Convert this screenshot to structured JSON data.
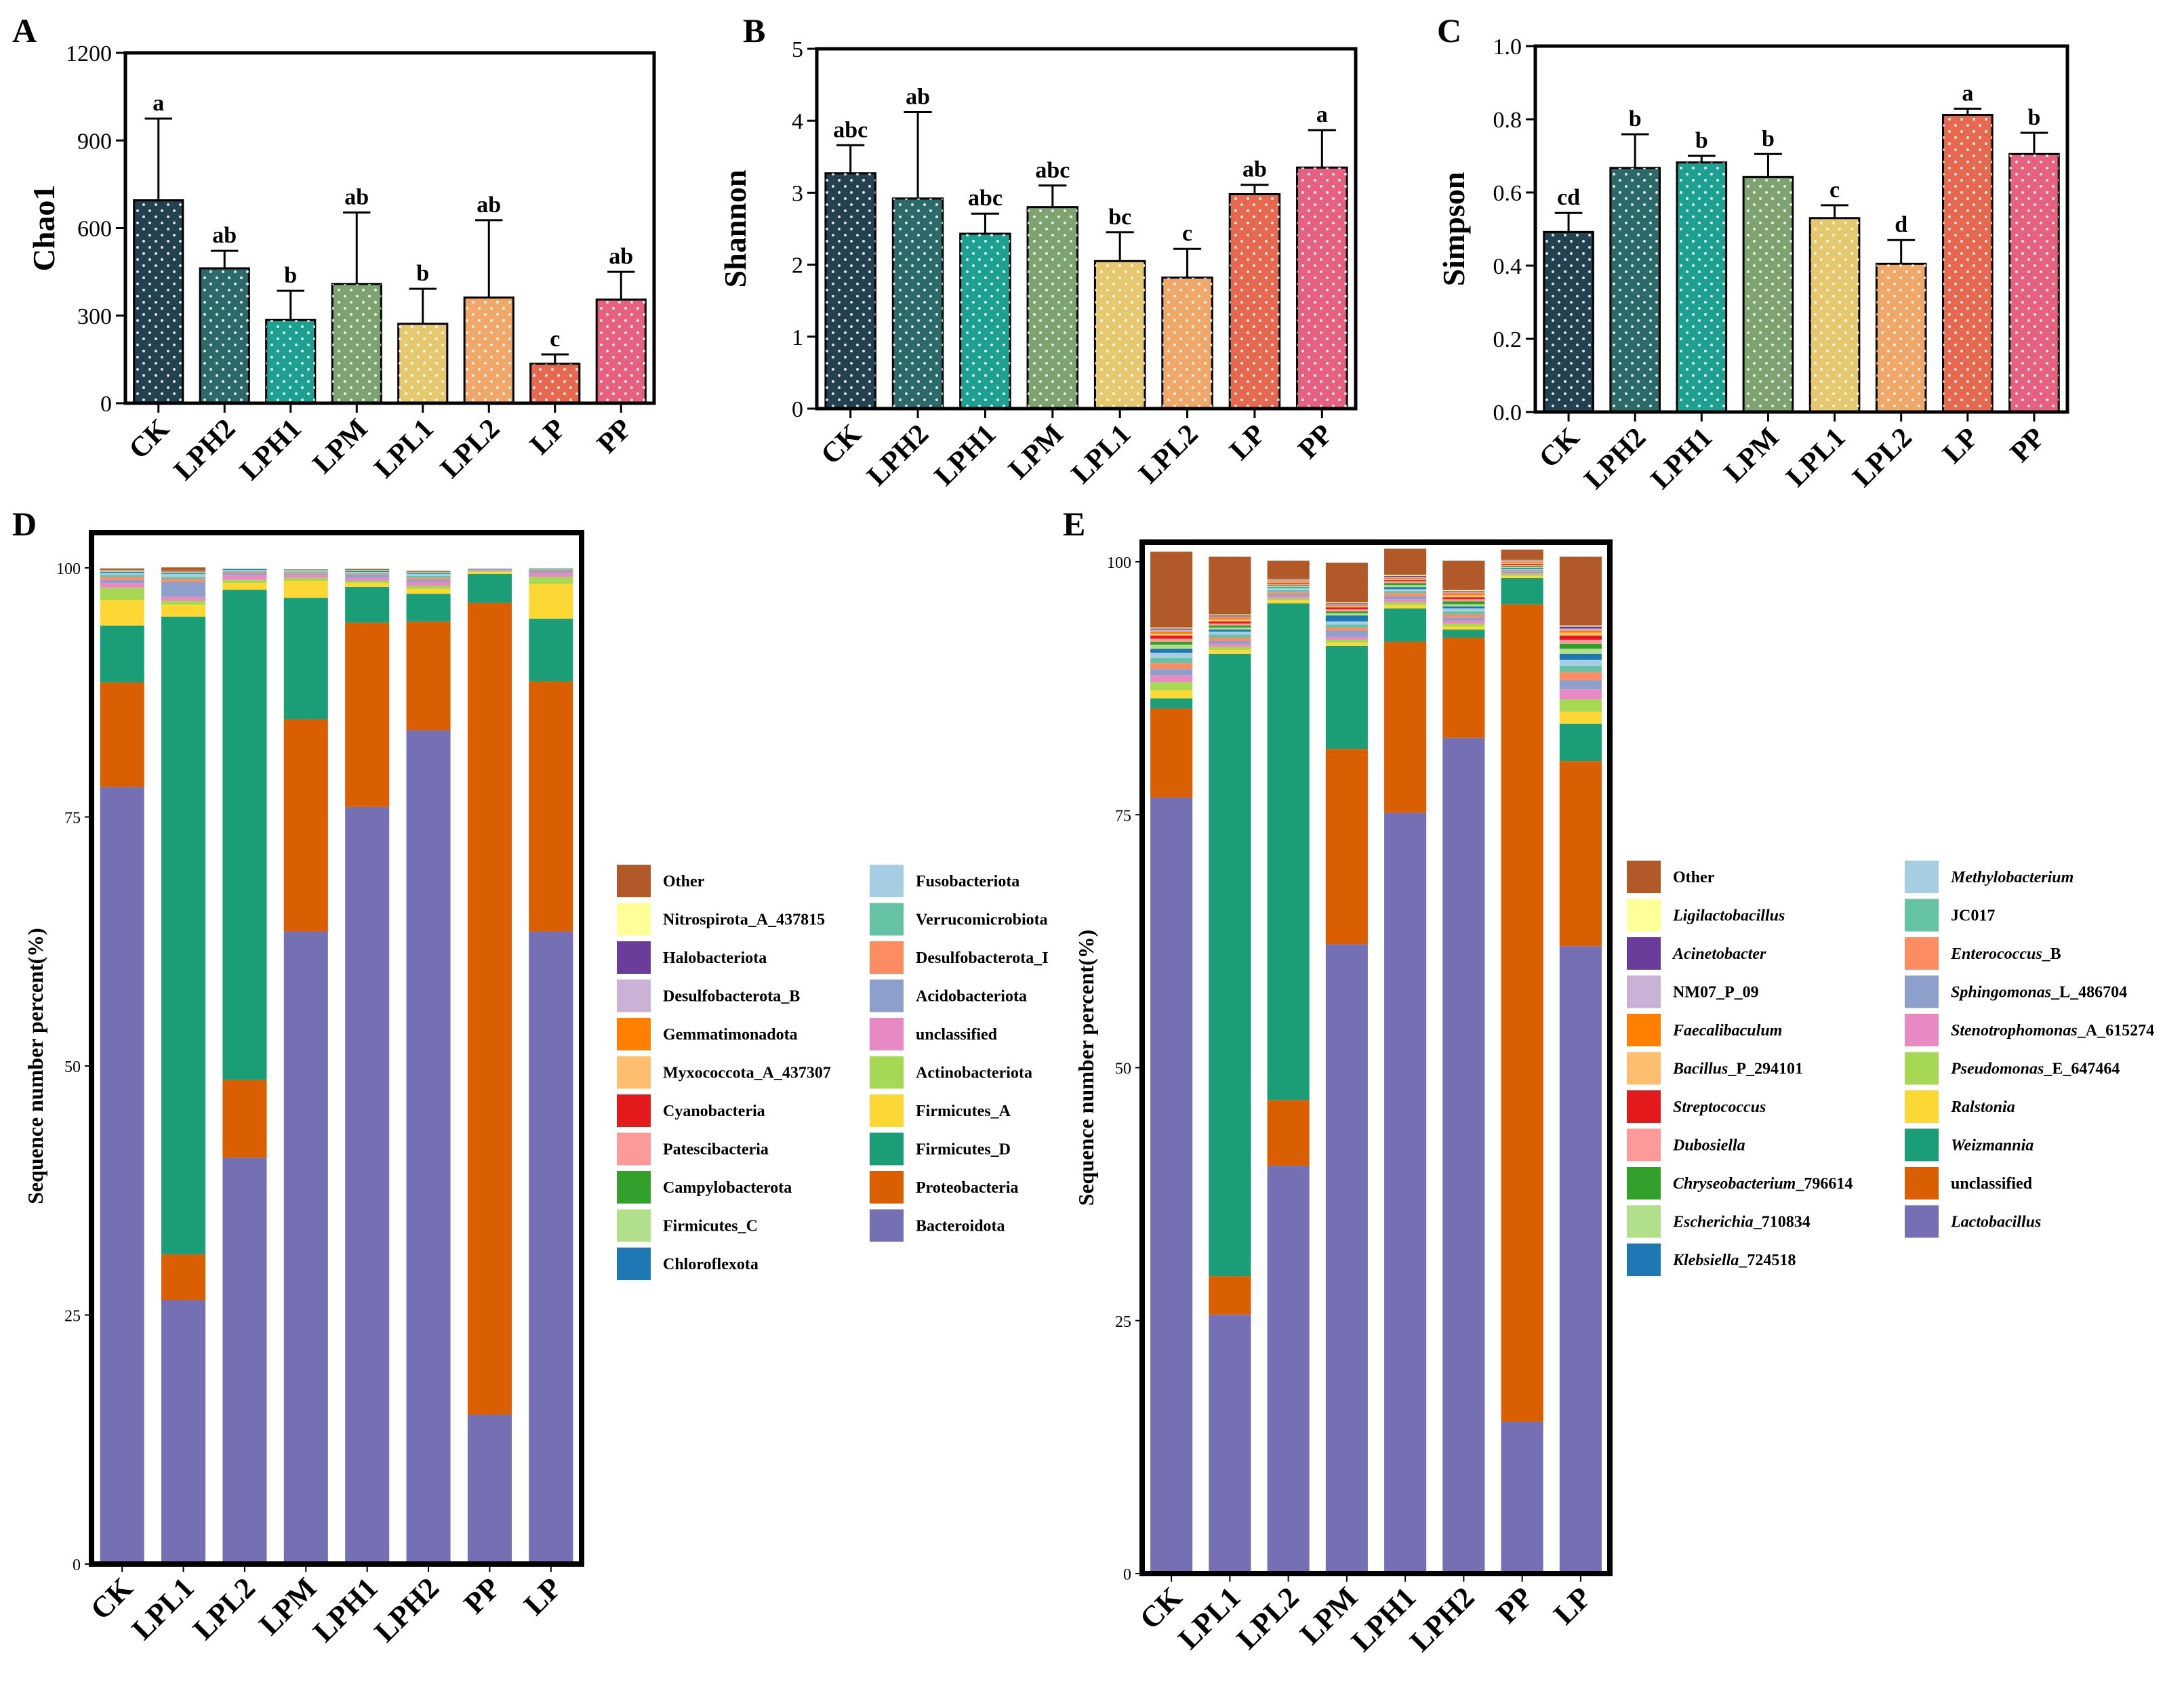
{
  "figure": {
    "panel_labels": [
      "A",
      "B",
      "C",
      "D",
      "E"
    ]
  },
  "patterns": {
    "dots": "white-dot-stipple"
  },
  "chart_data": [
    {
      "panel": "A",
      "type": "bar",
      "categories": [
        "CK",
        "LPH2",
        "LPH1",
        "LPM",
        "LPL1",
        "LPL2",
        "LP",
        "PP"
      ],
      "values": [
        695,
        462,
        285,
        408,
        272,
        362,
        135,
        355
      ],
      "errors": [
        280,
        60,
        100,
        245,
        120,
        265,
        32,
        95
      ],
      "letters": [
        "a",
        "ab",
        "b",
        "ab",
        "b",
        "ab",
        "c",
        "ab"
      ],
      "colors": [
        "#24414F",
        "#2B6A68",
        "#1DA08F",
        "#7EA370",
        "#E6C86E",
        "#F0A869",
        "#E6694F",
        "#E6607F"
      ],
      "ylabel": "Chao1",
      "ylim": [
        0,
        1200
      ],
      "yticks": [
        0,
        300,
        600,
        900,
        1200
      ]
    },
    {
      "panel": "B",
      "type": "bar",
      "categories": [
        "CK",
        "LPH2",
        "LPH1",
        "LPM",
        "LPL1",
        "LPL2",
        "LP",
        "PP"
      ],
      "values": [
        3.27,
        2.92,
        2.43,
        2.8,
        2.05,
        1.82,
        2.98,
        3.35
      ],
      "errors": [
        0.39,
        1.2,
        0.28,
        0.3,
        0.4,
        0.4,
        0.13,
        0.52
      ],
      "letters": [
        "abc",
        "ab",
        "abc",
        "abc",
        "bc",
        "c",
        "ab",
        "a"
      ],
      "colors": [
        "#24414F",
        "#2B6A68",
        "#1DA08F",
        "#7EA370",
        "#E6C86E",
        "#F0A869",
        "#E6694F",
        "#E6607F"
      ],
      "ylabel": "Shannon",
      "ylim": [
        0,
        5
      ],
      "yticks": [
        0,
        1,
        2,
        3,
        4,
        5
      ]
    },
    {
      "panel": "C",
      "type": "bar",
      "categories": [
        "CK",
        "LPH2",
        "LPH1",
        "LPM",
        "LPL1",
        "LPL2",
        "LP",
        "PP"
      ],
      "values": [
        0.492,
        0.667,
        0.682,
        0.642,
        0.53,
        0.405,
        0.812,
        0.705
      ],
      "errors": [
        0.052,
        0.092,
        0.018,
        0.063,
        0.035,
        0.065,
        0.017,
        0.058
      ],
      "letters": [
        "cd",
        "b",
        "b",
        "b",
        "c",
        "d",
        "a",
        "b"
      ],
      "colors": [
        "#24414F",
        "#2B6A68",
        "#1DA08F",
        "#7EA370",
        "#E6C86E",
        "#F0A869",
        "#E6694F",
        "#E6607F"
      ],
      "ylabel": "Simpson",
      "ylim": [
        0,
        1.0
      ],
      "yticks": [
        "0.0",
        "0.2",
        "0.4",
        "0.6",
        "0.8",
        "1.0"
      ]
    },
    {
      "panel": "D",
      "type": "stacked-bar",
      "ylabel": "Sequence number percent(%)",
      "ylim": [
        0,
        100
      ],
      "yticks": [
        0,
        25,
        50,
        75,
        100
      ],
      "categories": [
        "CK",
        "LPL1",
        "LPL2",
        "LPM",
        "LPH1",
        "LPH2",
        "PP",
        "LP"
      ],
      "series": [
        {
          "name": "Bacteroidota",
          "color": "#7570B3",
          "values": [
            78,
            26.5,
            40.8,
            63.5,
            76,
            83.7,
            15,
            63.5
          ]
        },
        {
          "name": "Proteobacteria",
          "color": "#D95F02",
          "values": [
            10.5,
            4.6,
            7.8,
            21.3,
            18.5,
            10.9,
            81.5,
            25.1
          ]
        },
        {
          "name": "Firmicutes_D",
          "color": "#1B9E77",
          "values": [
            5.7,
            64,
            49.2,
            12.2,
            3.6,
            2.8,
            2.9,
            6.3
          ]
        },
        {
          "name": "Firmicutes_A",
          "color": "#FDD835",
          "values": [
            2.6,
            1.2,
            0.7,
            1.7,
            0.4,
            0.5,
            0.2,
            3.5
          ]
        },
        {
          "name": "Actinobacteriota",
          "color": "#A6D854",
          "values": [
            1.2,
            0.4,
            0.3,
            0.3,
            0.2,
            0.3,
            0.1,
            0.7
          ]
        },
        {
          "name": "unclassified",
          "color": "#E78AC3",
          "values": [
            0.5,
            0.4,
            0.5,
            0.3,
            0.3,
            0.4,
            0.1,
            0.4
          ]
        },
        {
          "name": "Acidobacteriota",
          "color": "#8DA0CB",
          "values": [
            0.3,
            1.5,
            0.2,
            0.1,
            0.3,
            0.2,
            0.1,
            0.2
          ]
        },
        {
          "name": "Desulfobacterota_I",
          "color": "#FC8D62",
          "values": [
            0.3,
            0.3,
            0.1,
            0.1,
            0.1,
            0.2,
            0,
            0.1
          ]
        },
        {
          "name": "Verrucomicrobiota",
          "color": "#66C2A5",
          "values": [
            0.2,
            0.2,
            0.1,
            0.1,
            0.1,
            0.2,
            0,
            0.1
          ]
        },
        {
          "name": "Fusobacteriota",
          "color": "#A6CEE3",
          "values": [
            0.2,
            0.3,
            0.1,
            0.1,
            0.1,
            0.2,
            0.05,
            0.1
          ]
        },
        {
          "name": "Chloroflexota",
          "color": "#1F78B4",
          "values": [
            0.1,
            0.1,
            0.1,
            0.05,
            0.1,
            0.1,
            0,
            0
          ]
        },
        {
          "name": "Firmicutes_C",
          "color": "#B2DF8A",
          "values": [
            0.1,
            0.1,
            0,
            0.05,
            0.1,
            0.1,
            0,
            0
          ]
        },
        {
          "name": "Campylobacterota",
          "color": "#33A02C",
          "values": [
            0.05,
            0.05,
            0,
            0,
            0,
            0,
            0,
            0
          ]
        },
        {
          "name": "Patescibacteria",
          "color": "#FB9A99",
          "values": [
            0.05,
            0.05,
            0,
            0,
            0,
            0,
            0,
            0
          ]
        },
        {
          "name": "Cyanobacteria",
          "color": "#E31A1C",
          "values": [
            0.05,
            0.05,
            0,
            0,
            0,
            0,
            0,
            0
          ]
        },
        {
          "name": "Myxococcota_A_437307",
          "color": "#FDBF6F",
          "values": [
            0,
            0,
            0,
            0,
            0,
            0,
            0,
            0
          ]
        },
        {
          "name": "Gemmatimonadota",
          "color": "#FF7F00",
          "values": [
            0,
            0,
            0,
            0,
            0,
            0,
            0,
            0
          ]
        },
        {
          "name": "Desulfobacterota_B",
          "color": "#CAB2D6",
          "values": [
            0,
            0,
            0,
            0,
            0,
            0,
            0,
            0
          ]
        },
        {
          "name": "Halobacteriota",
          "color": "#6A3D9A",
          "values": [
            0,
            0,
            0,
            0,
            0,
            0,
            0,
            0
          ]
        },
        {
          "name": "Nitrospirota_A_437815",
          "color": "#FFFF99",
          "values": [
            0,
            0,
            0,
            0,
            0,
            0,
            0,
            0
          ]
        },
        {
          "name": "Other",
          "color": "#B15928",
          "values": [
            0.1,
            0.3,
            0,
            0.05,
            0.1,
            0.1,
            0,
            0
          ]
        }
      ],
      "legend_left": [
        "Other",
        "Nitrospirota_A_437815",
        "Halobacteriota",
        "Desulfobacterota_B",
        "Gemmatimonadota",
        "Myxococcota_A_437307",
        "Cyanobacteria",
        "Patescibacteria",
        "Campylobacterota",
        "Firmicutes_C",
        "Chloroflexota"
      ],
      "legend_right": [
        "Fusobacteriota",
        "Verrucomicrobiota",
        "Desulfobacterota_I",
        "Acidobacteriota",
        "unclassified",
        "Actinobacteriota",
        "Firmicutes_A",
        "Firmicutes_D",
        "Proteobacteria",
        "Bacteroidota"
      ]
    },
    {
      "panel": "E",
      "type": "stacked-bar",
      "ylabel": "Sequence number percent(%)",
      "ylim": [
        0,
        100
      ],
      "yticks": [
        0,
        25,
        50,
        75,
        100
      ],
      "categories": [
        "CK",
        "LPL1",
        "LPL2",
        "LPM",
        "LPH1",
        "LPH2",
        "PP",
        "LP"
      ],
      "series": [
        {
          "name": "Lactobacillus",
          "color": "#7570B3",
          "values": [
            76.7,
            25.6,
            40.3,
            62.2,
            75.2,
            82.6,
            15,
            62
          ]
        },
        {
          "name": "unclassified",
          "color": "#D95F02",
          "values": [
            8.8,
            3.8,
            6.5,
            19.3,
            16.9,
            9.9,
            80.8,
            18.3
          ]
        },
        {
          "name": "Weizmannia",
          "color": "#1B9E77",
          "values": [
            1,
            61.5,
            49.1,
            10.2,
            3.3,
            0.8,
            2.6,
            3.7
          ]
        },
        {
          "name": "Ralstonia",
          "color": "#FDD835",
          "values": [
            0.8,
            0.4,
            0.3,
            0.3,
            0.3,
            0.3,
            0.2,
            1.2
          ]
        },
        {
          "name": "Pseudomonas_E_647464",
          "color": "#A6D854",
          "values": [
            0.8,
            0.3,
            0.2,
            0.3,
            0.3,
            0.3,
            0.2,
            1.2
          ]
        },
        {
          "name": "Stenotrophomonas_A_615274",
          "color": "#E78AC3",
          "values": [
            0.7,
            0.3,
            0.2,
            0.3,
            0.3,
            0.3,
            0.1,
            1
          ]
        },
        {
          "name": "Sphingomonas_L_486704",
          "color": "#8DA0CB",
          "values": [
            0.6,
            0.3,
            0.2,
            0.6,
            0.3,
            0.3,
            0.1,
            0.9
          ]
        },
        {
          "name": "Enterococcus_B",
          "color": "#FC8D62",
          "values": [
            0.6,
            0.3,
            0.2,
            0.3,
            0.3,
            0.3,
            0.1,
            0.8
          ]
        },
        {
          "name": "JC017",
          "color": "#66C2A5",
          "values": [
            0.5,
            0.3,
            0.2,
            0.3,
            0.2,
            0.3,
            0.1,
            0.6
          ]
        },
        {
          "name": "Methylobacterium",
          "color": "#A6CEE3",
          "values": [
            0.5,
            0.3,
            0.2,
            0.3,
            0.2,
            0.3,
            0.1,
            0.6
          ]
        },
        {
          "name": "Klebsiella_724518",
          "color": "#1F78B4",
          "values": [
            0.4,
            0.2,
            0.1,
            0.6,
            0.2,
            0.2,
            0.1,
            0.6
          ]
        },
        {
          "name": "Escherichia_710834",
          "color": "#B2DF8A",
          "values": [
            0.4,
            0.2,
            0.1,
            0.2,
            0.2,
            0.2,
            0.1,
            0.5
          ]
        },
        {
          "name": "Chryseobacterium_796614",
          "color": "#33A02C",
          "values": [
            0.3,
            0.2,
            0.1,
            0.2,
            0.2,
            0.3,
            0.1,
            0.5
          ]
        },
        {
          "name": "Dubosiella",
          "color": "#FB9A99",
          "values": [
            0.3,
            0.2,
            0.1,
            0.2,
            0.2,
            0.2,
            0.1,
            0.4
          ]
        },
        {
          "name": "Streptococcus",
          "color": "#E31A1C",
          "values": [
            0.3,
            0.2,
            0.1,
            0.2,
            0.1,
            0.2,
            0.1,
            0.4
          ]
        },
        {
          "name": "Bacillus_P_294101",
          "color": "#FDBF6F",
          "values": [
            0.2,
            0.2,
            0.1,
            0.1,
            0.1,
            0.2,
            0.1,
            0.3
          ]
        },
        {
          "name": "Faecalibaculum",
          "color": "#FF7F00",
          "values": [
            0.2,
            0.2,
            0.1,
            0.1,
            0.1,
            0.2,
            0.1,
            0.2
          ]
        },
        {
          "name": "NM07_P_09",
          "color": "#CAB2D6",
          "values": [
            0.2,
            0.1,
            0.1,
            0.1,
            0.1,
            0.1,
            0.1,
            0.2
          ]
        },
        {
          "name": "Acinetobacter",
          "color": "#6A3D9A",
          "values": [
            0.1,
            0.1,
            0.05,
            0.1,
            0.1,
            0.1,
            0.05,
            0.2
          ]
        },
        {
          "name": "Ligilactobacillus",
          "color": "#FFFF99",
          "values": [
            0.1,
            0.1,
            0.05,
            0.1,
            0.1,
            0.1,
            0.05,
            0.1
          ]
        },
        {
          "name": "Other",
          "color": "#B15928",
          "values": [
            7.5,
            5.7,
            1.8,
            3.9,
            2.6,
            2.9,
            1,
            6.8
          ]
        }
      ],
      "legend_left": [
        "Other",
        "Ligilactobacillus",
        "Acinetobacter",
        "NM07_P_09",
        "Faecalibaculum",
        "Bacillus_P_294101",
        "Streptococcus",
        "Dubosiella",
        "Chryseobacterium_796614",
        "Escherichia_710834",
        "Klebsiella_724518"
      ],
      "legend_right": [
        "Methylobacterium",
        "JC017",
        "Enterococcus_B",
        "Sphingomonas_L_486704",
        "Stenotrophomonas_A_615274",
        "Pseudomonas_E_647464",
        "Ralstonia",
        "Weizmannia",
        "unclassified",
        "Lactobacillus"
      ],
      "italic_prefix": {
        "Ligilactobacillus": [
          "Ligilactobacillus",
          ""
        ],
        "Acinetobacter": [
          "Acinetobacter",
          ""
        ],
        "Faecalibaculum": [
          "Faecalibaculum",
          ""
        ],
        "Bacillus_P_294101": [
          "Bacillus",
          "_P_294101"
        ],
        "Streptococcus": [
          "Streptococcus",
          ""
        ],
        "Dubosiella": [
          "Dubosiella",
          ""
        ],
        "Chryseobacterium_796614": [
          "Chryseobacterium",
          "_796614"
        ],
        "Escherichia_710834": [
          "Escherichia",
          "_710834"
        ],
        "Klebsiella_724518": [
          "Klebsiella",
          "_724518"
        ],
        "Methylobacterium": [
          "Methylobacterium",
          ""
        ],
        "Enterococcus_B": [
          "Enterococcus",
          "_B"
        ],
        "Sphingomonas_L_486704": [
          "Sphingomonas",
          "_L_486704"
        ],
        "Stenotrophomonas_A_615274": [
          "Stenotrophomonas",
          "_A_615274"
        ],
        "Pseudomonas_E_647464": [
          "Pseudomonas",
          "_E_647464"
        ],
        "Ralstonia": [
          "Ralstonia",
          ""
        ],
        "Weizmannia": [
          "Weizmannia",
          ""
        ],
        "Lactobacillus": [
          "Lactobacillus",
          ""
        ]
      }
    }
  ]
}
